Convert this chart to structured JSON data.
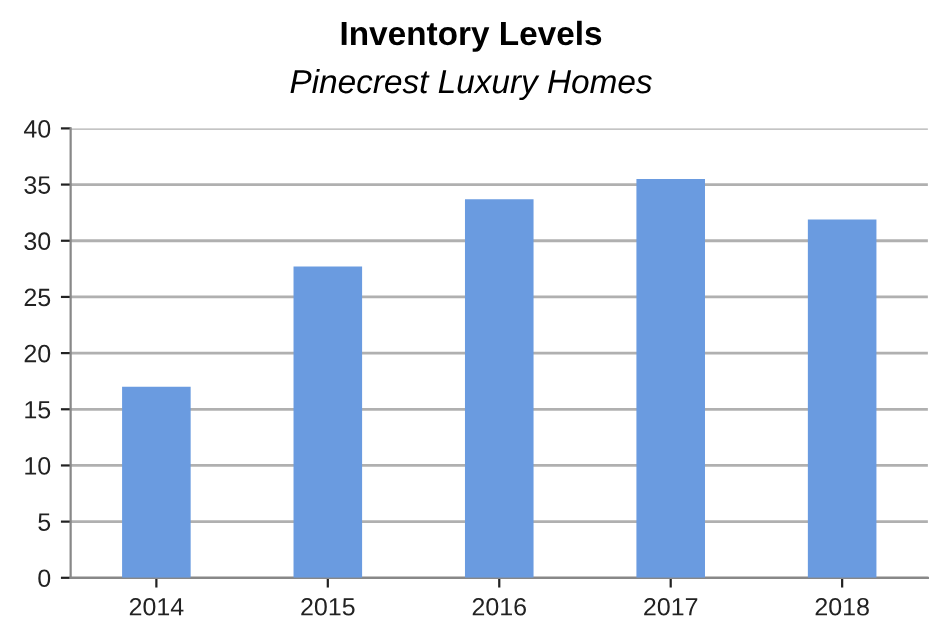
{
  "chart_data": {
    "type": "bar",
    "title": "Inventory Levels",
    "subtitle": "Pinecrest Luxury Homes",
    "categories": [
      "2014",
      "2015",
      "2016",
      "2017",
      "2018"
    ],
    "values": [
      17,
      27.7,
      33.7,
      35.5,
      31.9
    ],
    "color": "#6a9be0",
    "ylim": [
      0,
      40
    ],
    "yticks": [
      0,
      5,
      10,
      15,
      20,
      25,
      30,
      35,
      40
    ],
    "grid": "y",
    "legend": false
  }
}
